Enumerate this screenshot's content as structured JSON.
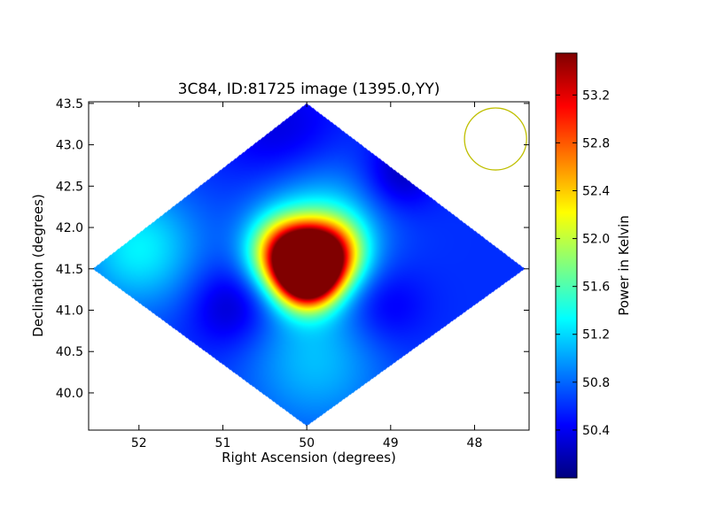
{
  "chart_data": {
    "type": "heatmap",
    "title": "3C84, ID:81725 image (1395.0,YY)",
    "xlabel": "Right Ascension (degrees)",
    "ylabel": "Declination (degrees)",
    "xlim": [
      52.6,
      47.35
    ],
    "ylim": [
      39.55,
      43.52
    ],
    "x_ticks": [
      52,
      51,
      50,
      49,
      48
    ],
    "y_ticks": [
      43.5,
      43.0,
      42.5,
      42.0,
      41.5,
      41.0,
      40.5,
      40.0
    ],
    "x_tick_labels": [
      "52",
      "51",
      "50",
      "49",
      "48"
    ],
    "y_tick_labels": [
      "43.5",
      "43.0",
      "42.5",
      "42.0",
      "41.5",
      "41.0",
      "40.5",
      "40.0"
    ],
    "colorscale": "jet",
    "colorbar": {
      "label": "Power in Kelvin",
      "range": [
        50.0,
        53.55
      ],
      "ticks": [
        50.4,
        50.8,
        51.2,
        51.6,
        52.0,
        52.4,
        52.8,
        53.2
      ],
      "tick_labels": [
        "50.4",
        "50.8",
        "51.2",
        "51.6",
        "52.0",
        "52.4",
        "52.8",
        "53.2"
      ]
    },
    "map_outline": [
      [
        50.0,
        43.5
      ],
      [
        52.55,
        41.5
      ],
      [
        50.0,
        39.6
      ],
      [
        47.4,
        41.5
      ]
    ],
    "map_base_value": 50.6,
    "features": [
      {
        "ra": 50.0,
        "dec": 41.55,
        "value": 53.5,
        "spread": 0.22
      },
      {
        "ra": 50.25,
        "dec": 41.7,
        "value": 52.7,
        "spread": 0.28
      },
      {
        "ra": 49.75,
        "dec": 41.7,
        "value": 52.7,
        "spread": 0.28
      },
      {
        "ra": 50.0,
        "dec": 41.35,
        "value": 52.7,
        "spread": 0.25
      },
      {
        "ra": 52.0,
        "dec": 41.75,
        "value": 51.3,
        "spread": 0.5
      },
      {
        "ra": 49.9,
        "dec": 40.4,
        "value": 51.1,
        "spread": 0.6
      },
      {
        "ra": 49.9,
        "dec": 42.0,
        "value": 51.3,
        "spread": 0.55
      },
      {
        "ra": 48.9,
        "dec": 42.65,
        "value": 50.2,
        "spread": 0.3
      },
      {
        "ra": 50.9,
        "dec": 41.05,
        "value": 50.2,
        "spread": 0.35
      },
      {
        "ra": 49.1,
        "dec": 41.05,
        "value": 50.3,
        "spread": 0.35
      },
      {
        "ra": 50.3,
        "dec": 43.1,
        "value": 50.3,
        "spread": 0.5
      }
    ],
    "beam": {
      "ra": 47.75,
      "dec": 43.07,
      "radius_deg": 0.37,
      "color": "#bfbf00"
    }
  }
}
